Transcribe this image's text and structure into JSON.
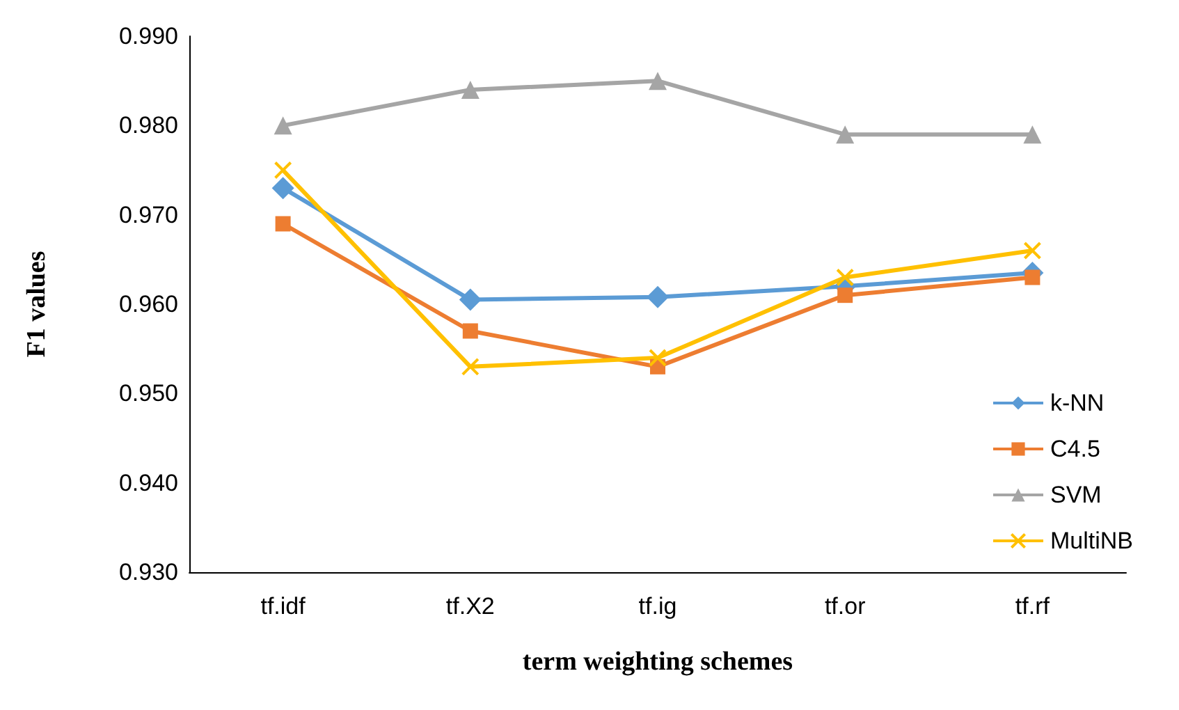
{
  "chart_data": {
    "type": "line",
    "xlabel": "term weighting schemes",
    "ylabel": "F1 values",
    "categories": [
      "tf.idf",
      "tf.X2",
      "tf.ig",
      "tf.or",
      "tf.rf"
    ],
    "series": [
      {
        "name": "k-NN",
        "color": "#5b9bd5",
        "marker": "diamond",
        "values": [
          0.973,
          0.9605,
          0.9608,
          0.962,
          0.9635
        ]
      },
      {
        "name": "C4.5",
        "color": "#ed7d31",
        "marker": "square",
        "values": [
          0.969,
          0.957,
          0.953,
          0.961,
          0.963
        ]
      },
      {
        "name": "SVM",
        "color": "#a5a5a5",
        "marker": "triangle",
        "values": [
          0.98,
          0.984,
          0.985,
          0.979,
          0.979
        ]
      },
      {
        "name": "MultiNB",
        "color": "#ffc000",
        "marker": "cross",
        "values": [
          0.975,
          0.953,
          0.954,
          0.963,
          0.966
        ]
      }
    ],
    "ylim": [
      0.93,
      0.99
    ],
    "yticks": [
      {
        "value": 0.93,
        "label": "0.930"
      },
      {
        "value": 0.94,
        "label": "0.940"
      },
      {
        "value": 0.95,
        "label": "0.950"
      },
      {
        "value": 0.96,
        "label": "0.960"
      },
      {
        "value": 0.97,
        "label": "0.970"
      },
      {
        "value": 0.98,
        "label": "0.980"
      },
      {
        "value": 0.99,
        "label": "0.990"
      }
    ],
    "grid": false,
    "legend": "bottom right"
  }
}
